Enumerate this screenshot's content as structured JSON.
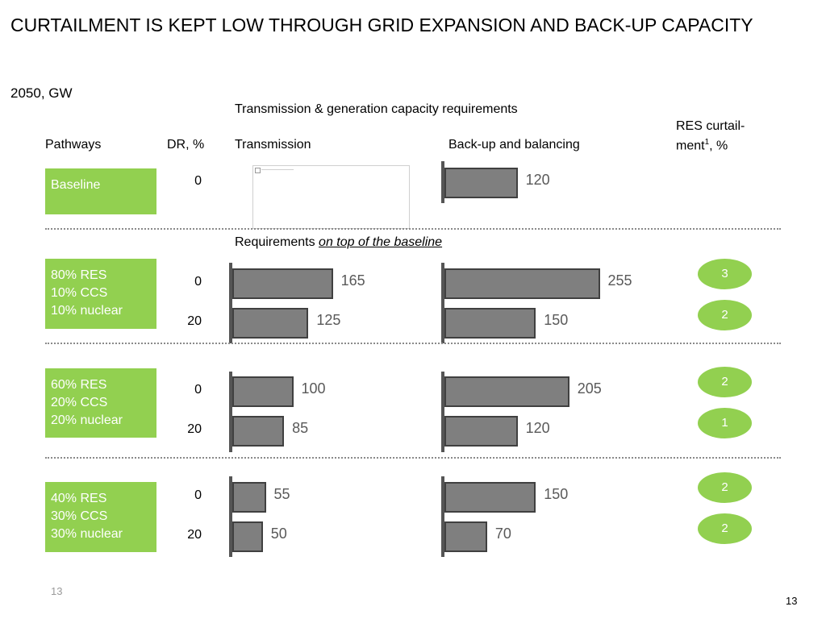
{
  "title": "CURTAILMENT IS KEPT LOW THROUGH GRID EXPANSION AND BACK-UP CAPACITY",
  "subtitle": "2050, GW",
  "headers": {
    "group": "Transmission & generation capacity requirements",
    "pathways": "Pathways",
    "dr": "DR, %",
    "transmission": "Transmission",
    "backup": "Back-up and balancing",
    "res_curtail_line1": "RES curtail-",
    "res_curtail_line2_pre": "ment",
    "res_curtail_sup": "1",
    "res_curtail_line2_post": ", %",
    "requirements_prefix": "Requirements ",
    "requirements_emph": "on top of the baseline"
  },
  "chart_data": {
    "type": "bar",
    "orientation": "horizontal",
    "unit": "GW",
    "rows": [
      {
        "pathway": [
          "Baseline"
        ],
        "entries": [
          {
            "dr": "0",
            "transmission": null,
            "backup": 120,
            "curtailment": null
          }
        ]
      },
      {
        "pathway": [
          "80% RES",
          "10% CCS",
          "10% nuclear"
        ],
        "entries": [
          {
            "dr": "0",
            "transmission": 165,
            "backup": 255,
            "curtailment": "3"
          },
          {
            "dr": "20",
            "transmission": 125,
            "backup": 150,
            "curtailment": "2"
          }
        ]
      },
      {
        "pathway": [
          "60% RES",
          "20% CCS",
          "20% nuclear"
        ],
        "entries": [
          {
            "dr": "0",
            "transmission": 100,
            "backup": 205,
            "curtailment": "2"
          },
          {
            "dr": "20",
            "transmission": 85,
            "backup": 120,
            "curtailment": "1"
          }
        ]
      },
      {
        "pathway": [
          "40% RES",
          "30% CCS",
          "30% nuclear"
        ],
        "entries": [
          {
            "dr": "0",
            "transmission": 55,
            "backup": 150,
            "curtailment": "2"
          },
          {
            "dr": "20",
            "transmission": 50,
            "backup": 70,
            "curtailment": "2"
          }
        ]
      }
    ]
  },
  "colors": {
    "pathway_box": "#92d050",
    "bar_fill": "#7f7f7f",
    "bar_border": "#404040",
    "bar_label": "#595959",
    "axis": "#555555"
  },
  "page_number": "13"
}
